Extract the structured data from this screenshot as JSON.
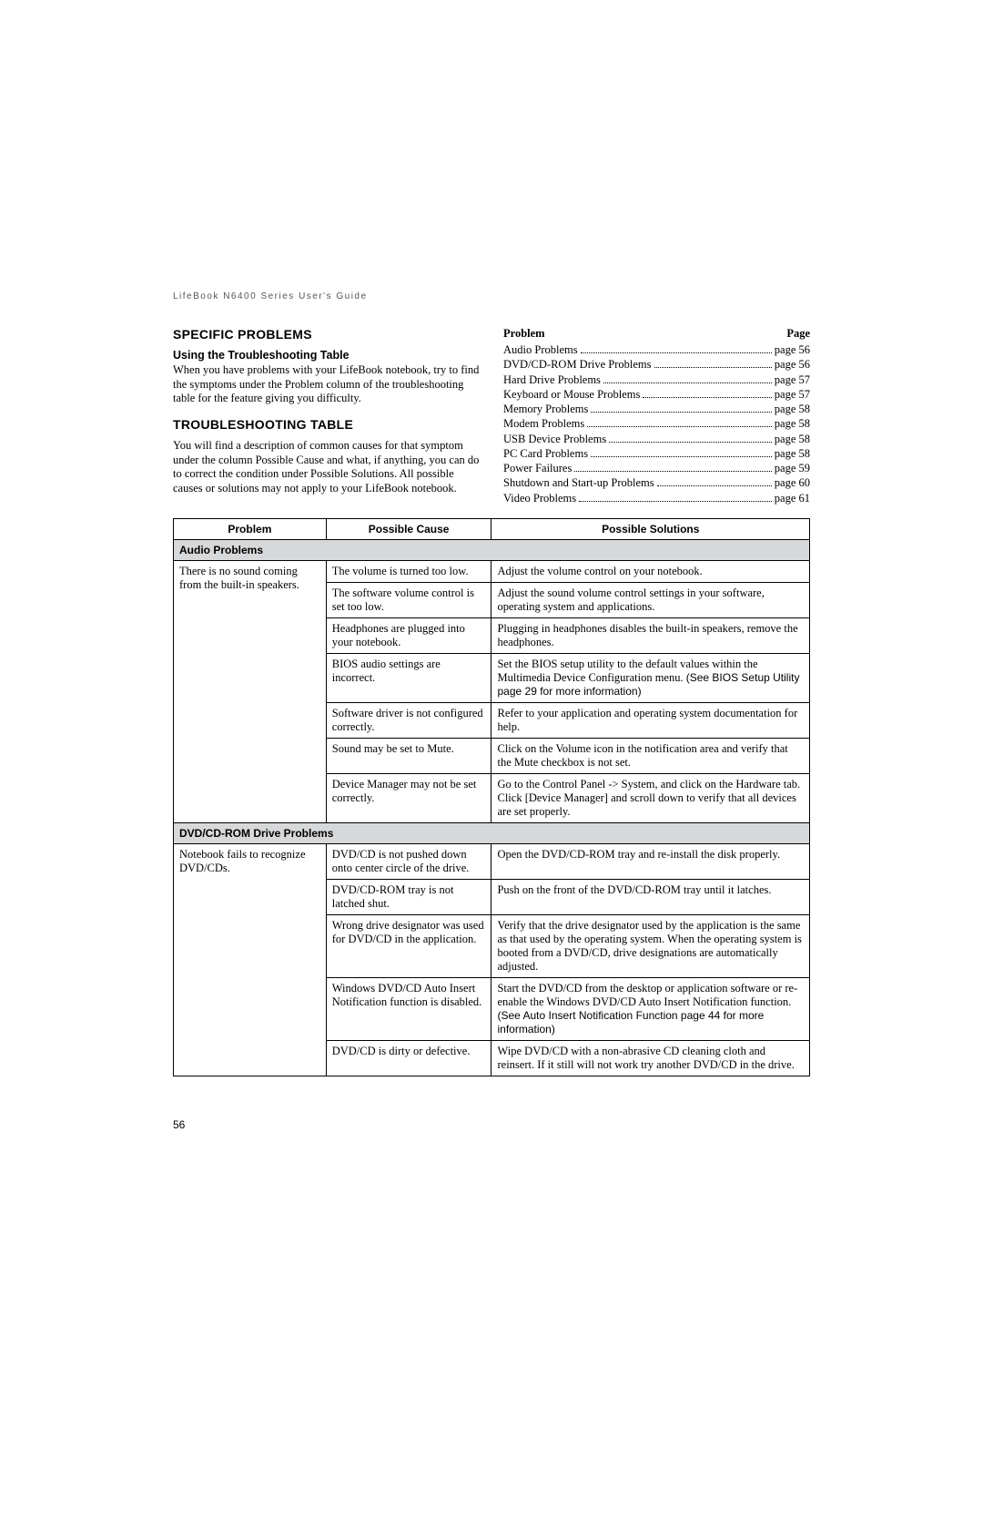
{
  "header_guide": "LifeBook N6400 Series User's Guide",
  "left": {
    "h2_specific": "SPECIFIC PROBLEMS",
    "h3_using": "Using the Troubleshooting Table",
    "p_using": "When you have problems with your LifeBook notebook, try to find the symptoms under the Problem column of the troubleshooting table for the feature giving you difficulty.",
    "h2_table": "TROUBLESHOOTING TABLE",
    "p_table": "You will find a description of common causes for that symptom under the column Possible Cause and what, if anything, you can do to correct the condition under Possible Solutions. All possible causes or solutions may not apply to your LifeBook notebook."
  },
  "toc": {
    "col_problem": "Problem",
    "col_page": "Page",
    "items": [
      {
        "label": "Audio Problems",
        "page": "page 56"
      },
      {
        "label": "DVD/CD-ROM Drive Problems",
        "page": "page 56"
      },
      {
        "label": "Hard Drive Problems",
        "page": "page 57"
      },
      {
        "label": "Keyboard or Mouse Problems",
        "page": "page 57"
      },
      {
        "label": "Memory Problems",
        "page": "page 58"
      },
      {
        "label": "Modem Problems",
        "page": "page 58"
      },
      {
        "label": "USB Device Problems",
        "page": "page 58"
      },
      {
        "label": "PC Card Problems",
        "page": "page 58"
      },
      {
        "label": "Power Failures",
        "page": "page 59"
      },
      {
        "label": "Shutdown and Start-up Problems",
        "page": "page 60"
      },
      {
        "label": "Video Problems",
        "page": "page 61"
      }
    ]
  },
  "table": {
    "col_widths": {
      "problem": "24%",
      "cause": "26%",
      "solution": "50%"
    },
    "headers": {
      "problem": "Problem",
      "cause": "Possible Cause",
      "solution": "Possible Solutions"
    },
    "groups": [
      {
        "category": "Audio Problems",
        "problem": "There is no sound coming from the built-in speakers.",
        "rows": [
          {
            "cause": "The volume is turned too low.",
            "solution": "Adjust the volume control on your notebook."
          },
          {
            "cause": "The software volume control is set too low.",
            "solution": "Adjust the sound volume control settings in your software, operating system and applications."
          },
          {
            "cause": "Headphones are plugged into your notebook.",
            "solution": "Plugging in headphones disables the built-in speakers, remove the headphones."
          },
          {
            "cause": "BIOS audio settings are incorrect.",
            "solution": "Set the BIOS setup utility to the default values within the Multimedia Device Configuration menu. ",
            "ref": "(See BIOS Setup Utility page 29 for more information)"
          },
          {
            "cause": "Software driver is not configured correctly.",
            "solution": "Refer to your application and operating system documentation for help."
          },
          {
            "cause": "Sound may be set to Mute.",
            "solution": "Click on the Volume icon in the notification area and verify that the Mute checkbox is not set."
          },
          {
            "cause": "Device Manager may not be set correctly.",
            "solution": "Go to the Control Panel -> System, and click on the Hardware tab. Click [Device Manager] and scroll down to verify that all devices are set properly."
          }
        ]
      },
      {
        "category": "DVD/CD-ROM Drive Problems",
        "problem": "Notebook fails to recognize DVD/CDs.",
        "rows": [
          {
            "cause": "DVD/CD is not pushed down onto center circle of the drive.",
            "solution": "Open the DVD/CD-ROM tray and re-install the disk properly."
          },
          {
            "cause": "DVD/CD-ROM tray is not latched shut.",
            "solution": "Push on the front of the DVD/CD-ROM tray until it latches."
          },
          {
            "cause": "Wrong drive designator was used for DVD/CD in the application.",
            "solution": "Verify that the drive designator used by the application is the same as that used by the operating system. When the operating system is booted from a DVD/CD, drive designations are automatically adjusted."
          },
          {
            "cause": "Windows DVD/CD Auto Insert Notification function is disabled.",
            "solution": "Start the DVD/CD from the desktop or application software or re-enable the Windows DVD/CD Auto Insert Notification function. ",
            "ref": "(See Auto Insert Notification Function page 44 for more information)"
          },
          {
            "cause": "DVD/CD is dirty or defective.",
            "solution": "Wipe DVD/CD with a non-abrasive CD cleaning cloth and reinsert. If it still will not work try another DVD/CD in the drive."
          }
        ]
      }
    ]
  },
  "page_number": "56"
}
